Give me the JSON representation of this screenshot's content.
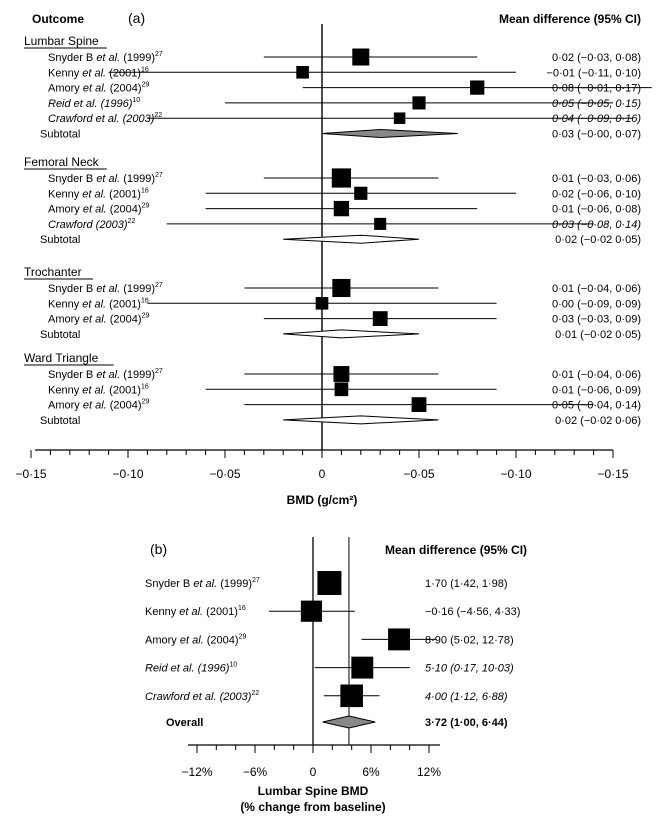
{
  "chart_data": [
    {
      "panel": "(a)",
      "type": "forest",
      "header_left": "Outcome",
      "header_right": "Mean difference (95% CI)",
      "xlabel": "BMD (g/cm²)",
      "xticks": [
        "−0·15",
        "−0·10",
        "−0·05",
        "0",
        "−0·05",
        "−0·10",
        "−0·15"
      ],
      "xlim": [
        -0.15,
        0.15
      ],
      "groups": [
        {
          "name": "Lumbar Spine",
          "studies": [
            {
              "label": "Snyder B",
              "etal": true,
              "year": "(1999)",
              "ref": "27",
              "italic": false,
              "estimate": 0.02,
              "low": -0.03,
              "high": 0.08,
              "ci_text": "0·02 (−0·03, 0·08)",
              "weight": 1.0
            },
            {
              "label": "Kenny",
              "etal": true,
              "year": "(2001)",
              "ref": "16",
              "italic": false,
              "estimate": -0.01,
              "low": -0.11,
              "high": 0.1,
              "ci_text": "−0·01 (−0·11, 0·10)",
              "weight": 0.6
            },
            {
              "label": "Amory",
              "etal": true,
              "year": "(2004)",
              "ref": "29",
              "italic": false,
              "estimate": 0.08,
              "low": -0.01,
              "high": 0.17,
              "ci_text": "0·08 (−0·01, 0·17)",
              "weight": 0.75
            },
            {
              "label": "Reid et al. (1996)",
              "etal": false,
              "year": "",
              "ref": "10",
              "italic": true,
              "estimate": 0.05,
              "low": -0.05,
              "high": 0.15,
              "ci_text": "0·05 (−0·05, 0·15)",
              "weight": 0.65
            },
            {
              "label": "Crawford et al. (2003)",
              "etal": false,
              "year": "",
              "ref": "22",
              "italic": true,
              "estimate": 0.04,
              "low": -0.09,
              "high": 0.16,
              "ci_text": "0·04 (−0·09, 0·16)",
              "weight": 0.5
            }
          ],
          "subtotal": {
            "label": "Subtotal",
            "estimate": 0.03,
            "low": -0.0,
            "high": 0.07,
            "ci_text": "0·03 (−0·00, 0·07)"
          }
        },
        {
          "name": "Femoral Neck",
          "studies": [
            {
              "label": "Snyder B",
              "etal": true,
              "year": "(1999)",
              "ref": "27",
              "italic": false,
              "estimate": 0.01,
              "low": -0.03,
              "high": 0.06,
              "ci_text": "0·01 (−0·03, 0·06)",
              "weight": 1.2
            },
            {
              "label": "Kenny",
              "etal": true,
              "year": "(2001)",
              "ref": "16",
              "italic": false,
              "estimate": 0.02,
              "low": -0.06,
              "high": 0.1,
              "ci_text": "0·02 (−0·06, 0·10)",
              "weight": 0.65
            },
            {
              "label": "Amory",
              "etal": true,
              "year": "(2004)",
              "ref": "29",
              "italic": false,
              "estimate": 0.01,
              "low": -0.06,
              "high": 0.08,
              "ci_text": "0·01 (−0·06, 0·08)",
              "weight": 0.85
            },
            {
              "label": "Crawford (2003)",
              "etal": false,
              "year": "",
              "ref": "22",
              "italic": true,
              "estimate": 0.03,
              "low": -0.08,
              "high": 0.14,
              "ci_text": "0·03 (−0·08, 0·14)",
              "weight": 0.55
            }
          ],
          "subtotal": {
            "label": "Subtotal",
            "estimate": 0.02,
            "low": -0.02,
            "high": 0.05,
            "ci_text": "0·02 (−0·02 0·05)"
          }
        },
        {
          "name": "Trochanter",
          "studies": [
            {
              "label": "Snyder B",
              "etal": true,
              "year": "(1999)",
              "ref": "27",
              "italic": false,
              "estimate": 0.01,
              "low": -0.04,
              "high": 0.06,
              "ci_text": "0·01 (−0·04, 0·06)",
              "weight": 1.1
            },
            {
              "label": "Kenny",
              "etal": true,
              "year": "(2001)",
              "ref": "16",
              "italic": false,
              "estimate": 0.0,
              "low": -0.09,
              "high": 0.09,
              "ci_text": "0·00 (−0·09, 0·09)",
              "weight": 0.6
            },
            {
              "label": "Amory",
              "etal": true,
              "year": "(2004)",
              "ref": "29",
              "italic": false,
              "estimate": 0.03,
              "low": -0.03,
              "high": 0.09,
              "ci_text": "0·03 (−0·03, 0·09)",
              "weight": 0.8
            }
          ],
          "subtotal": {
            "label": "Subtotal",
            "estimate": 0.01,
            "low": -0.02,
            "high": 0.05,
            "ci_text": "0·01 (−0·02 0·05)"
          }
        },
        {
          "name": "Ward Triangle",
          "studies": [
            {
              "label": "Snyder B",
              "etal": true,
              "year": "(1999)",
              "ref": "27",
              "italic": false,
              "estimate": 0.01,
              "low": -0.04,
              "high": 0.06,
              "ci_text": "0·01 (−0·04, 0·06)",
              "weight": 0.9
            },
            {
              "label": "Kenny",
              "etal": true,
              "year": "(2001)",
              "ref": "16",
              "italic": false,
              "estimate": 0.01,
              "low": -0.06,
              "high": 0.09,
              "ci_text": "0·01 (−0·06, 0·09)",
              "weight": 0.7
            },
            {
              "label": "Amory",
              "etal": true,
              "year": "(2004)",
              "ref": "29",
              "italic": false,
              "estimate": 0.05,
              "low": -0.04,
              "high": 0.14,
              "ci_text": "0·05 (−0·04, 0·14)",
              "weight": 0.8
            }
          ],
          "subtotal": {
            "label": "Subtotal",
            "estimate": 0.02,
            "low": -0.02,
            "high": 0.06,
            "ci_text": "0·02 (−0·02 0·06)"
          }
        }
      ]
    },
    {
      "panel": "(b)",
      "type": "forest",
      "header_right": "Mean difference (95% CI)",
      "xlabel": "Lumbar Spine BMD",
      "xlabel2": "(% change from baseline)",
      "xticks": [
        "−12%",
        "−6%",
        "0",
        "6%",
        "12%"
      ],
      "xlim": [
        -15,
        15
      ],
      "studies": [
        {
          "label": "Snyder B",
          "etal": true,
          "year": "(1999)",
          "ref": "27",
          "italic": false,
          "estimate": 1.7,
          "low": 1.42,
          "high": 1.98,
          "ci_text": "1·70 (1·42, 1·98)",
          "weight": 1.0
        },
        {
          "label": "Kenny",
          "etal": true,
          "year": "(2001)",
          "ref": "16",
          "italic": false,
          "estimate": -0.16,
          "low": -4.56,
          "high": 4.33,
          "ci_text": "−0·16 (−4·56, 4·33)",
          "weight": 0.8
        },
        {
          "label": "Amory",
          "etal": true,
          "year": "(2004)",
          "ref": "29",
          "italic": false,
          "estimate": 8.9,
          "low": 5.02,
          "high": 12.78,
          "ci_text": "8·90 (5·02, 12·78)",
          "weight": 0.85
        },
        {
          "label": "Reid et al. (1996)",
          "etal": false,
          "year": "",
          "ref": "10",
          "italic": true,
          "estimate": 5.1,
          "low": 0.17,
          "high": 10.03,
          "ci_text": "5·10 (0·17, 10·03)",
          "weight": 0.85
        },
        {
          "label": "Crawford et al. (2003)",
          "etal": false,
          "year": "",
          "ref": "22",
          "italic": true,
          "estimate": 4.0,
          "low": 1.12,
          "high": 6.88,
          "ci_text": "4·00 (1·12, 6·88)",
          "weight": 0.9
        }
      ],
      "overall": {
        "label": "Overall",
        "estimate": 3.72,
        "low": 1.0,
        "high": 6.44,
        "ci_text": "3·72 (1·00, 6·44)"
      }
    }
  ]
}
